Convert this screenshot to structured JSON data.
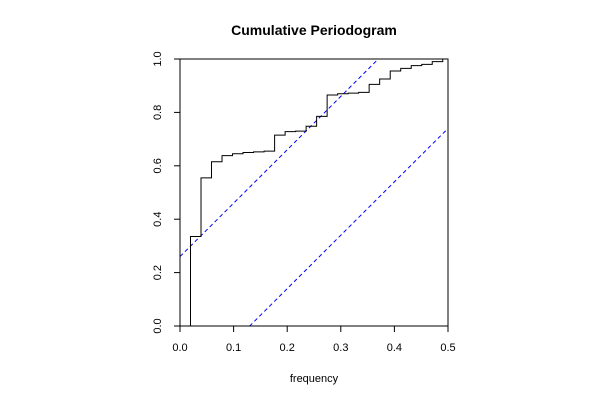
{
  "chart_data": {
    "type": "line",
    "title": "Cumulative Periodogram",
    "xlabel": "frequency",
    "ylabel": "",
    "xlim": [
      0,
      0.5
    ],
    "ylim": [
      0,
      1
    ],
    "xticks": [
      0.0,
      0.1,
      0.2,
      0.3,
      0.4,
      0.5
    ],
    "xtick_labels": [
      "0.0",
      "0.1",
      "0.2",
      "0.3",
      "0.4",
      "0.5"
    ],
    "yticks": [
      0.0,
      0.2,
      0.4,
      0.6,
      0.8,
      1.0
    ],
    "ytick_labels": [
      "0.0",
      "0.2",
      "0.4",
      "0.6",
      "0.8",
      "1.0"
    ],
    "series": [
      {
        "style": "step",
        "color": "#000000",
        "x": [
          0.0196,
          0.0392,
          0.0588,
          0.0784,
          0.098,
          0.1176,
          0.1373,
          0.1569,
          0.1765,
          0.1961,
          0.2157,
          0.2353,
          0.2549,
          0.2745,
          0.2941,
          0.3137,
          0.3333,
          0.3529,
          0.3725,
          0.3922,
          0.4118,
          0.4314,
          0.451,
          0.4706,
          0.4902
        ],
        "y": [
          0.335,
          0.555,
          0.615,
          0.638,
          0.645,
          0.65,
          0.652,
          0.655,
          0.715,
          0.728,
          0.73,
          0.748,
          0.785,
          0.865,
          0.87,
          0.872,
          0.875,
          0.905,
          0.925,
          0.955,
          0.965,
          0.975,
          0.98,
          0.99,
          1.0
        ]
      }
    ],
    "bands": [
      {
        "style": "dashed",
        "color": "#0000ff",
        "slope": 2,
        "intercept": 0.26
      },
      {
        "style": "dashed",
        "color": "#0000ff",
        "slope": 2,
        "intercept": -0.26
      }
    ]
  }
}
